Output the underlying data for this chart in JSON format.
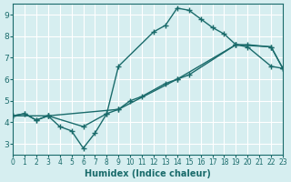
{
  "xlabel": "Humidex (Indice chaleur)",
  "ylabel": "",
  "bg_color": "#d6eef0",
  "grid_color": "#ffffff",
  "line_color": "#1a6b6b",
  "xlim": [
    0,
    23
  ],
  "ylim": [
    2.5,
    9.5
  ],
  "xticks": [
    0,
    1,
    2,
    3,
    4,
    5,
    6,
    7,
    8,
    9,
    10,
    11,
    12,
    13,
    14,
    15,
    16,
    17,
    18,
    19,
    20,
    21,
    22,
    23
  ],
  "yticks": [
    3,
    4,
    5,
    6,
    7,
    8,
    9
  ],
  "line1": {
    "x": [
      0,
      1,
      2,
      3,
      4,
      5,
      6,
      7,
      8,
      9,
      12,
      13,
      14,
      15,
      16,
      17,
      18,
      19,
      20,
      22,
      23
    ],
    "y": [
      4.3,
      4.4,
      4.1,
      4.3,
      3.8,
      3.6,
      2.8,
      3.5,
      4.4,
      6.6,
      8.2,
      8.5,
      9.3,
      9.2,
      8.8,
      8.4,
      8.1,
      7.6,
      7.5,
      6.6,
      6.5
    ]
  },
  "line2": {
    "x": [
      0,
      1,
      2,
      3,
      6,
      8,
      9,
      10,
      11,
      13,
      14,
      15,
      19,
      20,
      22,
      23
    ],
    "y": [
      4.3,
      4.4,
      4.1,
      4.3,
      3.8,
      4.4,
      4.6,
      5.0,
      5.2,
      5.8,
      6.0,
      6.2,
      7.6,
      7.6,
      7.5,
      6.5
    ]
  },
  "line3": {
    "x": [
      0,
      3,
      9,
      14,
      19,
      22,
      23
    ],
    "y": [
      4.3,
      4.3,
      4.6,
      6.0,
      7.6,
      7.5,
      6.5
    ]
  }
}
